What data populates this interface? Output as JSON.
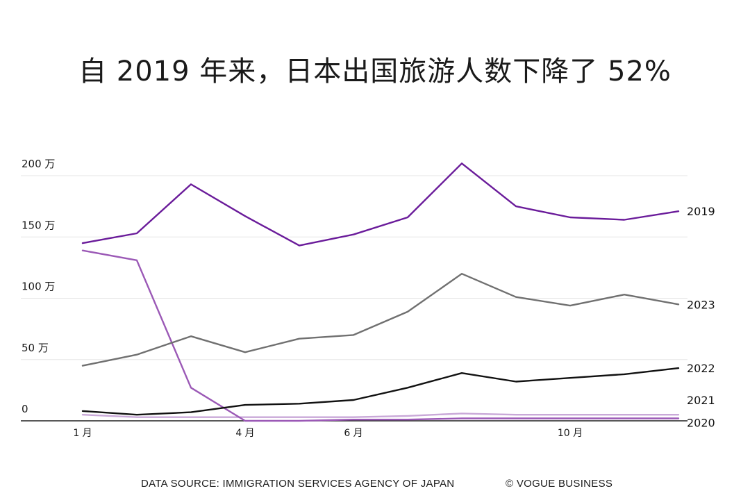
{
  "chart_data": {
    "type": "line",
    "title": "自 2019 年来，日本出国旅游人数下降了 52%",
    "xlabel": "",
    "ylabel": "",
    "ylim": [
      0,
      200
    ],
    "y_ticks": [
      {
        "value": 0,
        "label": "0"
      },
      {
        "value": 50,
        "label": "50 万"
      },
      {
        "value": 100,
        "label": "100 万"
      },
      {
        "value": 150,
        "label": "150 万"
      },
      {
        "value": 200,
        "label": "200 万"
      }
    ],
    "x": [
      1,
      2,
      3,
      4,
      5,
      6,
      7,
      8,
      9,
      10,
      11,
      12
    ],
    "x_ticks": [
      {
        "value": 1,
        "label": "1 月"
      },
      {
        "value": 4,
        "label": "4 月"
      },
      {
        "value": 6,
        "label": "6 月"
      },
      {
        "value": 10,
        "label": "10 月"
      }
    ],
    "grid": true,
    "series": [
      {
        "name": "2019",
        "color": "#6a1b9a",
        "values": [
          145,
          153,
          193,
          167,
          143,
          152,
          166,
          210,
          175,
          166,
          164,
          171
        ]
      },
      {
        "name": "2020",
        "color": "#9b59b6",
        "values": [
          139,
          131,
          27,
          0,
          0,
          1,
          1,
          2,
          2,
          2,
          2,
          2
        ]
      },
      {
        "name": "2021",
        "color": "#c9a8d8",
        "values": [
          5,
          3,
          3,
          3,
          3,
          3,
          4,
          6,
          5,
          5,
          5,
          5
        ]
      },
      {
        "name": "2022",
        "color": "#111111",
        "values": [
          8,
          5,
          7,
          13,
          14,
          17,
          27,
          39,
          32,
          35,
          38,
          43
        ]
      },
      {
        "name": "2023",
        "color": "#707070",
        "values": [
          45,
          54,
          69,
          56,
          67,
          70,
          89,
          120,
          101,
          94,
          103,
          95
        ]
      }
    ]
  },
  "footer": {
    "source": "DATA SOURCE: IMMIGRATION SERVICES AGENCY OF JAPAN",
    "credit": "© VOGUE BUSINESS"
  }
}
